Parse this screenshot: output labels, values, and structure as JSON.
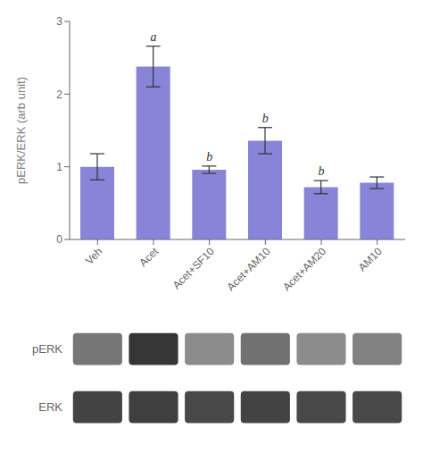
{
  "chart_data": [
    {
      "type": "bar",
      "categories": [
        "Veh",
        "Acet",
        "Acet+SF10",
        "Acet+AM10",
        "Acet+AM20",
        "AM10"
      ],
      "values": [
        1.0,
        2.38,
        0.96,
        1.36,
        0.72,
        0.78
      ],
      "errors": [
        0.18,
        0.28,
        0.05,
        0.18,
        0.09,
        0.08
      ],
      "ylabel": "pERK/ERK (arb unit)",
      "ylim": [
        0,
        3
      ],
      "yticks": [
        0,
        1,
        2,
        3
      ],
      "annotations": [
        {
          "category": "Acet",
          "text": "a"
        },
        {
          "category": "Acet+SF10",
          "text": "b"
        },
        {
          "category": "Acet+AM10",
          "text": "b"
        },
        {
          "category": "Acet+AM20",
          "text": "b"
        }
      ]
    },
    {
      "type": "heatmap",
      "x": [
        "Veh",
        "Acet",
        "Acet+SF10",
        "Acet+AM10",
        "Acet+AM20",
        "AM10"
      ],
      "y": [
        "pERK",
        "ERK"
      ],
      "values": [
        [
          0.6,
          0.88,
          0.5,
          0.62,
          0.5,
          0.55
        ],
        [
          0.82,
          0.84,
          0.8,
          0.82,
          0.8,
          0.8
        ]
      ],
      "tick_labels": "y",
      "color": "#1a1a1a"
    }
  ]
}
